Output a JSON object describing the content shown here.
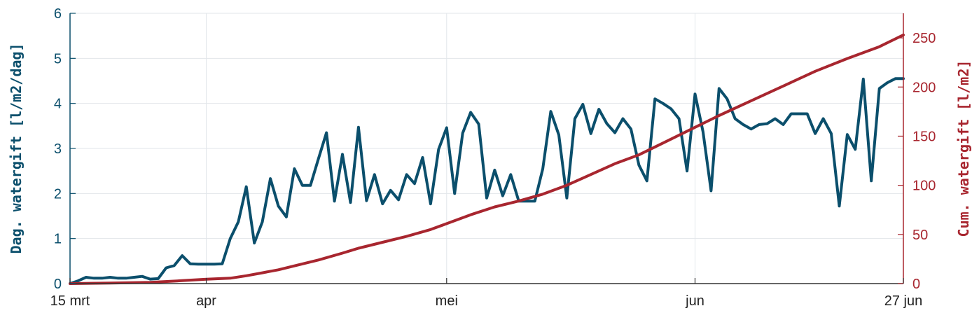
{
  "chart_data": {
    "type": "line",
    "x_axis": {
      "type": "date",
      "range": [
        "2023-03-15",
        "2023-06-27"
      ],
      "ticks": [
        {
          "date": "2023-03-15",
          "label": "15 mrt"
        },
        {
          "date": "2023-04-01",
          "label": "apr"
        },
        {
          "date": "2023-05-01",
          "label": "mei"
        },
        {
          "date": "2023-06-01",
          "label": "jun"
        },
        {
          "date": "2023-06-27",
          "label": "27 jun"
        }
      ],
      "grid": true
    },
    "y_left": {
      "label": "Dag. watergift [l/m2/dag]",
      "range": [
        0,
        6
      ],
      "ticks": [
        "0",
        "1",
        "2",
        "3",
        "4",
        "5",
        "6"
      ],
      "color": "#0b4f6c",
      "grid": true
    },
    "y_right": {
      "label": "Cum. watergift [l/m2]",
      "range": [
        0,
        275
      ],
      "ticks": [
        "0",
        "50",
        "100",
        "150",
        "200",
        "250"
      ],
      "color": "#a8262f"
    },
    "series": [
      {
        "axis": "left",
        "color": "#0b4f6c",
        "points": [
          [
            "2023-03-15",
            0.0
          ],
          [
            "2023-03-16",
            0.06
          ],
          [
            "2023-03-17",
            0.14
          ],
          [
            "2023-03-18",
            0.12
          ],
          [
            "2023-03-19",
            0.12
          ],
          [
            "2023-03-20",
            0.14
          ],
          [
            "2023-03-21",
            0.12
          ],
          [
            "2023-03-22",
            0.12
          ],
          [
            "2023-03-23",
            0.14
          ],
          [
            "2023-03-24",
            0.16
          ],
          [
            "2023-03-25",
            0.1
          ],
          [
            "2023-03-26",
            0.11
          ],
          [
            "2023-03-27",
            0.35
          ],
          [
            "2023-03-28",
            0.4
          ],
          [
            "2023-03-29",
            0.62
          ],
          [
            "2023-03-30",
            0.44
          ],
          [
            "2023-03-31",
            0.43
          ],
          [
            "2023-04-01",
            0.43
          ],
          [
            "2023-04-02",
            0.43
          ],
          [
            "2023-04-03",
            0.44
          ],
          [
            "2023-04-04",
            1.0
          ],
          [
            "2023-04-05",
            1.37
          ],
          [
            "2023-04-06",
            2.15
          ],
          [
            "2023-04-07",
            0.9
          ],
          [
            "2023-04-08",
            1.37
          ],
          [
            "2023-04-09",
            2.33
          ],
          [
            "2023-04-10",
            1.72
          ],
          [
            "2023-04-11",
            1.48
          ],
          [
            "2023-04-12",
            2.55
          ],
          [
            "2023-04-13",
            2.18
          ],
          [
            "2023-04-14",
            2.18
          ],
          [
            "2023-04-15",
            2.77
          ],
          [
            "2023-04-16",
            3.35
          ],
          [
            "2023-04-17",
            1.83
          ],
          [
            "2023-04-18",
            2.87
          ],
          [
            "2023-04-19",
            1.8
          ],
          [
            "2023-04-20",
            3.47
          ],
          [
            "2023-04-21",
            1.84
          ],
          [
            "2023-04-22",
            2.42
          ],
          [
            "2023-04-23",
            1.77
          ],
          [
            "2023-04-24",
            2.07
          ],
          [
            "2023-04-25",
            1.86
          ],
          [
            "2023-04-26",
            2.42
          ],
          [
            "2023-04-27",
            2.22
          ],
          [
            "2023-04-28",
            2.8
          ],
          [
            "2023-04-29",
            1.77
          ],
          [
            "2023-04-30",
            2.98
          ],
          [
            "2023-05-01",
            3.46
          ],
          [
            "2023-05-02",
            2.0
          ],
          [
            "2023-05-03",
            3.34
          ],
          [
            "2023-05-04",
            3.8
          ],
          [
            "2023-05-05",
            3.54
          ],
          [
            "2023-05-06",
            1.9
          ],
          [
            "2023-05-07",
            2.52
          ],
          [
            "2023-05-08",
            1.95
          ],
          [
            "2023-05-09",
            2.42
          ],
          [
            "2023-05-10",
            1.83
          ],
          [
            "2023-05-11",
            1.83
          ],
          [
            "2023-05-12",
            1.83
          ],
          [
            "2023-05-13",
            2.55
          ],
          [
            "2023-05-14",
            3.82
          ],
          [
            "2023-05-15",
            3.3
          ],
          [
            "2023-05-16",
            1.9
          ],
          [
            "2023-05-17",
            3.66
          ],
          [
            "2023-05-18",
            3.98
          ],
          [
            "2023-05-19",
            3.33
          ],
          [
            "2023-05-20",
            3.87
          ],
          [
            "2023-05-21",
            3.55
          ],
          [
            "2023-05-22",
            3.35
          ],
          [
            "2023-05-23",
            3.66
          ],
          [
            "2023-05-24",
            3.43
          ],
          [
            "2023-05-25",
            2.63
          ],
          [
            "2023-05-26",
            2.28
          ],
          [
            "2023-05-27",
            4.1
          ],
          [
            "2023-05-28",
            4.0
          ],
          [
            "2023-05-29",
            3.88
          ],
          [
            "2023-05-30",
            3.66
          ],
          [
            "2023-05-31",
            2.5
          ],
          [
            "2023-06-01",
            4.21
          ],
          [
            "2023-06-02",
            3.37
          ],
          [
            "2023-06-03",
            2.06
          ],
          [
            "2023-06-04",
            4.33
          ],
          [
            "2023-06-05",
            4.1
          ],
          [
            "2023-06-06",
            3.66
          ],
          [
            "2023-06-07",
            3.53
          ],
          [
            "2023-06-08",
            3.43
          ],
          [
            "2023-06-09",
            3.53
          ],
          [
            "2023-06-10",
            3.55
          ],
          [
            "2023-06-11",
            3.66
          ],
          [
            "2023-06-12",
            3.53
          ],
          [
            "2023-06-13",
            3.77
          ],
          [
            "2023-06-14",
            3.77
          ],
          [
            "2023-06-15",
            3.77
          ],
          [
            "2023-06-16",
            3.33
          ],
          [
            "2023-06-17",
            3.66
          ],
          [
            "2023-06-18",
            3.33
          ],
          [
            "2023-06-19",
            1.72
          ],
          [
            "2023-06-20",
            3.31
          ],
          [
            "2023-06-21",
            2.98
          ],
          [
            "2023-06-22",
            4.54
          ],
          [
            "2023-06-23",
            2.28
          ],
          [
            "2023-06-24",
            4.33
          ],
          [
            "2023-06-25",
            4.46
          ],
          [
            "2023-06-26",
            4.55
          ],
          [
            "2023-06-27",
            4.55
          ]
        ]
      },
      {
        "axis": "right",
        "color": "#a8262f",
        "points": [
          [
            "2023-03-15",
            0
          ],
          [
            "2023-03-20",
            0.6
          ],
          [
            "2023-03-25",
            1.3
          ],
          [
            "2023-03-29",
            3
          ],
          [
            "2023-04-01",
            4.5
          ],
          [
            "2023-04-04",
            5.5
          ],
          [
            "2023-04-06",
            8
          ],
          [
            "2023-04-08",
            11
          ],
          [
            "2023-04-10",
            14
          ],
          [
            "2023-04-12",
            18
          ],
          [
            "2023-04-15",
            24
          ],
          [
            "2023-04-18",
            31
          ],
          [
            "2023-04-20",
            36
          ],
          [
            "2023-04-23",
            42
          ],
          [
            "2023-04-26",
            48
          ],
          [
            "2023-04-29",
            55
          ],
          [
            "2023-05-01",
            61
          ],
          [
            "2023-05-04",
            70
          ],
          [
            "2023-05-07",
            78
          ],
          [
            "2023-05-10",
            84
          ],
          [
            "2023-05-13",
            91
          ],
          [
            "2023-05-16",
            100
          ],
          [
            "2023-05-19",
            111
          ],
          [
            "2023-05-22",
            122
          ],
          [
            "2023-05-25",
            131
          ],
          [
            "2023-05-28",
            143
          ],
          [
            "2023-06-01",
            159
          ],
          [
            "2023-06-04",
            171
          ],
          [
            "2023-06-08",
            186
          ],
          [
            "2023-06-12",
            201
          ],
          [
            "2023-06-16",
            216
          ],
          [
            "2023-06-20",
            229
          ],
          [
            "2023-06-24",
            241
          ],
          [
            "2023-06-27",
            253
          ]
        ]
      }
    ]
  }
}
